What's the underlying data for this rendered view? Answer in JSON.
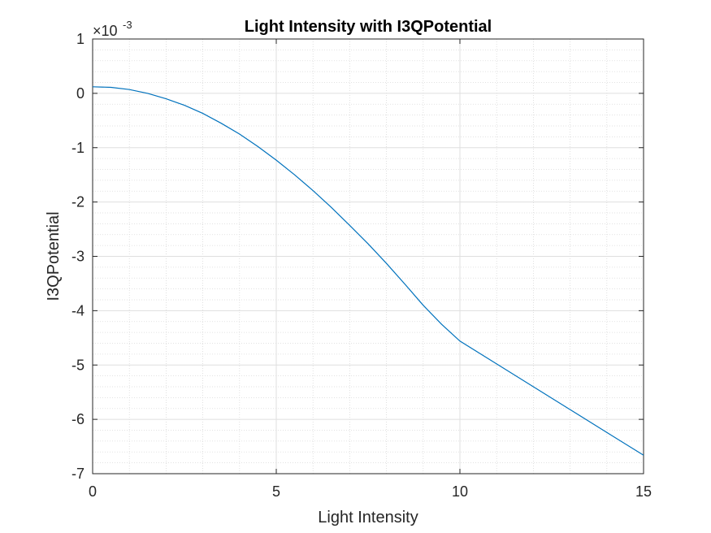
{
  "chart_data": {
    "type": "line",
    "title": "Light Intensity with I3QPotential",
    "xlabel": "Light Intensity",
    "ylabel": "I3QPotential",
    "xlim": [
      0,
      15
    ],
    "ylim": [
      -7,
      1
    ],
    "y_exponent_base": "×10",
    "y_exponent_power": "-3",
    "x_ticks": [
      0,
      5,
      10,
      15
    ],
    "x_tick_labels": [
      "0",
      "5",
      "10",
      "15"
    ],
    "y_ticks": [
      1,
      0,
      -1,
      -2,
      -3,
      -4,
      -5,
      -6,
      -7
    ],
    "y_tick_labels": [
      "1",
      "0",
      "-1",
      "-2",
      "-3",
      "-4",
      "-5",
      "-6",
      "-7"
    ],
    "grid": true,
    "minor_grid": true,
    "series": [
      {
        "color": "#0072BD",
        "x": [
          0,
          0.5,
          1,
          1.5,
          2,
          2.5,
          3,
          3.5,
          4,
          4.5,
          5,
          5.5,
          6,
          6.5,
          7,
          7.5,
          8,
          8.5,
          9,
          9.5,
          10,
          11,
          12,
          13,
          14,
          15
        ],
        "y": [
          0.12,
          0.11,
          0.07,
          0.0,
          -0.1,
          -0.22,
          -0.37,
          -0.55,
          -0.75,
          -0.98,
          -1.23,
          -1.5,
          -1.79,
          -2.1,
          -2.43,
          -2.77,
          -3.13,
          -3.51,
          -3.9,
          -4.25,
          -4.56,
          -4.98,
          -5.4,
          -5.82,
          -6.24,
          -6.66
        ]
      }
    ]
  }
}
